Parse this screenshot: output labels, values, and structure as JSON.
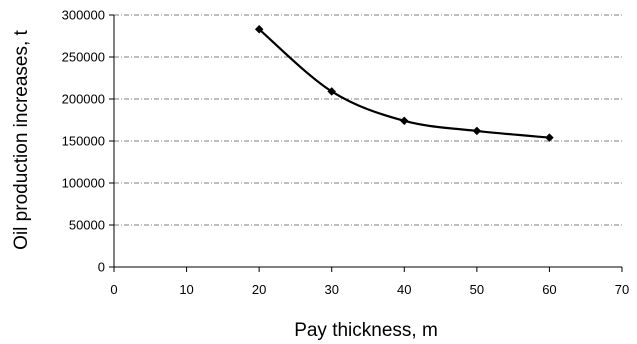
{
  "chart_data": {
    "type": "line",
    "title": "",
    "xlabel": "Pay thickness, m",
    "ylabel": "Oil production increases, t",
    "xlim": [
      0,
      70
    ],
    "ylim": [
      0,
      300000
    ],
    "x_ticks": [
      "0",
      "10",
      "20",
      "30",
      "40",
      "50",
      "60",
      "70"
    ],
    "y_ticks": [
      "0",
      "50000",
      "100000",
      "150000",
      "200000",
      "250000",
      "300000"
    ],
    "grid": "horizontal dash-dot",
    "legend": "none",
    "series": [
      {
        "x": [
          20,
          30,
          40,
          50,
          60
        ],
        "y": [
          283000,
          209000,
          174000,
          162000,
          154000
        ],
        "color": "#000000",
        "marker": "diamond",
        "smoothed": true
      }
    ]
  }
}
